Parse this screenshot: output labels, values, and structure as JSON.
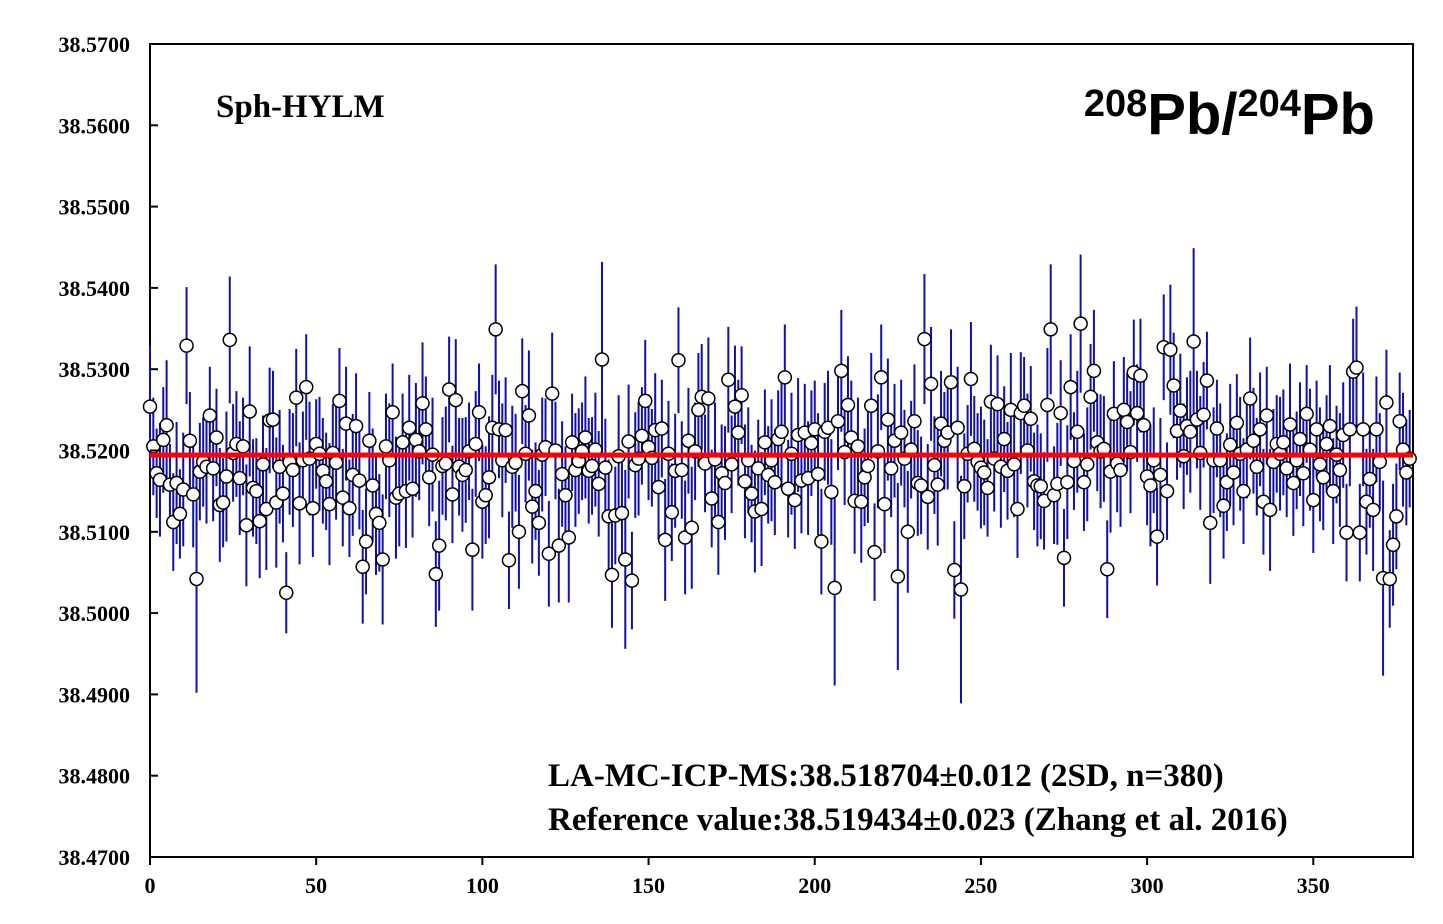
{
  "chart_data": {
    "type": "scatter",
    "title": [
      "208",
      "Pb/",
      "204",
      "Pb"
    ],
    "sample_label": "Sph-HYLM",
    "annotations": [
      "LA-MC-ICP-MS:38.518704±0.012 (2SD, n=380)",
      "Reference value:38.519434±0.023 (Zhang et al. 2016)"
    ],
    "xlim": [
      0,
      380
    ],
    "ylim": [
      38.47,
      38.57
    ],
    "xticks": [
      0,
      50,
      100,
      150,
      200,
      250,
      300,
      350
    ],
    "yticks": [
      {
        "value": 38.47,
        "label": "38.4700"
      },
      {
        "value": 38.48,
        "label": "38.4800"
      },
      {
        "value": 38.49,
        "label": "38.4900"
      },
      {
        "value": 38.5,
        "label": "38.5000"
      },
      {
        "value": 38.51,
        "label": "38.5100"
      },
      {
        "value": 38.52,
        "label": "38.5200"
      },
      {
        "value": 38.53,
        "label": "38.5300"
      },
      {
        "value": 38.54,
        "label": "38.5400"
      },
      {
        "value": 38.55,
        "label": "38.5500"
      },
      {
        "value": 38.56,
        "label": "38.5600"
      },
      {
        "value": 38.57,
        "label": "38.5700"
      }
    ],
    "reference_line": 38.519434,
    "reference_color": "#ff0000",
    "color": "#1010b0",
    "marker_fill": "#ffffff",
    "marker_edge": "#000000",
    "x": [
      0,
      1,
      2,
      3,
      4,
      5,
      6,
      7,
      8,
      9,
      10,
      11,
      12,
      13,
      14,
      15,
      16,
      17,
      18,
      19,
      20,
      21,
      22,
      23,
      24,
      25,
      26,
      27,
      28,
      29,
      30,
      31,
      32,
      33,
      34,
      35,
      36,
      37,
      38,
      39,
      40,
      41,
      42,
      43,
      44,
      45,
      46,
      47,
      48,
      49,
      50,
      51,
      52,
      53,
      54,
      55,
      56,
      57,
      58,
      59,
      60,
      61,
      62,
      63,
      64,
      65,
      66,
      67,
      68,
      69,
      70,
      71,
      72,
      73,
      74,
      75,
      76,
      77,
      78,
      79,
      80,
      81,
      82,
      83,
      84,
      85,
      86,
      87,
      88,
      89,
      90,
      91,
      92,
      93,
      94,
      95,
      96,
      97,
      98,
      99,
      100,
      101,
      102,
      103,
      104,
      105,
      106,
      107,
      108,
      109,
      110,
      111,
      112,
      113,
      114,
      115,
      116,
      117,
      118,
      119,
      120,
      121,
      122,
      123,
      124,
      125,
      126,
      127,
      128,
      129,
      130,
      131,
      132,
      133,
      134,
      135,
      136,
      137,
      138,
      139,
      140,
      141,
      142,
      143,
      144,
      145,
      146,
      147,
      148,
      149,
      150,
      151,
      152,
      153,
      154,
      155,
      156,
      157,
      158,
      159,
      160,
      161,
      162,
      163,
      164,
      165,
      166,
      167,
      168,
      169,
      170,
      171,
      172,
      173,
      174,
      175,
      176,
      177,
      178,
      179,
      180,
      181,
      182,
      183,
      184,
      185,
      186,
      187,
      188,
      189,
      190,
      191,
      192,
      193,
      194,
      195,
      196,
      197,
      198,
      199,
      200,
      201,
      202,
      203,
      204,
      205,
      206,
      207,
      208,
      209,
      210,
      211,
      212,
      213,
      214,
      215,
      216,
      217,
      218,
      219,
      220,
      221,
      222,
      223,
      224,
      225,
      226,
      227,
      228,
      229,
      230,
      231,
      232,
      233,
      234,
      235,
      236,
      237,
      238,
      239,
      240,
      241,
      242,
      243,
      244,
      245,
      246,
      247,
      248,
      249,
      250,
      251,
      252,
      253,
      254,
      255,
      256,
      257,
      258,
      259,
      260,
      261,
      262,
      263,
      264,
      265,
      266,
      267,
      268,
      269,
      270,
      271,
      272,
      273,
      274,
      275,
      276,
      277,
      278,
      279,
      280,
      281,
      282,
      283,
      284,
      285,
      286,
      287,
      288,
      289,
      290,
      291,
      292,
      293,
      294,
      295,
      296,
      297,
      298,
      299,
      300,
      301,
      302,
      303,
      304,
      305,
      306,
      307,
      308,
      309,
      310,
      311,
      312,
      313,
      314,
      315,
      316,
      317,
      318,
      319,
      320,
      321,
      322,
      323,
      324,
      325,
      326,
      327,
      328,
      329,
      330,
      331,
      332,
      333,
      334,
      335,
      336,
      337,
      338,
      339,
      340,
      341,
      342,
      343,
      344,
      345,
      346,
      347,
      348,
      349,
      350,
      351,
      352,
      353,
      354,
      355,
      356,
      357,
      358,
      359,
      360,
      361,
      362,
      363,
      364,
      365,
      366,
      367,
      368,
      369,
      370,
      371,
      372,
      373,
      374,
      375,
      376,
      377,
      378,
      379
    ],
    "values": [
      38.5254,
      38.5205,
      38.5172,
      38.5164,
      38.5213,
      38.5231,
      38.5158,
      38.5112,
      38.516,
      38.5122,
      38.5152,
      38.5329,
      38.5212,
      38.5146,
      38.5042,
      38.5174,
      38.5186,
      38.518,
      38.5243,
      38.5178,
      38.5216,
      38.5133,
      38.5136,
      38.5168,
      38.5336,
      38.5197,
      38.5208,
      38.5166,
      38.5205,
      38.5108,
      38.5248,
      38.5154,
      38.515,
      38.5113,
      38.5183,
      38.5128,
      38.5237,
      38.5238,
      38.5136,
      38.518,
      38.5147,
      38.5025,
      38.5186,
      38.5176,
      38.5265,
      38.5135,
      38.5188,
      38.5278,
      38.519,
      38.5129,
      38.5208,
      38.5196,
      38.5175,
      38.5162,
      38.5134,
      38.5197,
      38.5185,
      38.5261,
      38.5142,
      38.5233,
      38.5129,
      38.517,
      38.523,
      38.5163,
      38.5057,
      38.5088,
      38.5212,
      38.5157,
      38.5122,
      38.5111,
      38.5066,
      38.5205,
      38.5188,
      38.5247,
      38.5142,
      38.5147,
      38.521,
      38.515,
      38.5228,
      38.5153,
      38.5213,
      38.5199,
      38.5258,
      38.5226,
      38.5167,
      38.5195,
      38.5048,
      38.5083,
      38.5181,
      38.5184,
      38.5275,
      38.5146,
      38.5262,
      38.518,
      38.517,
      38.5176,
      38.5199,
      38.5078,
      38.5208,
      38.5247,
      38.5137,
      38.5145,
      38.5167,
      38.5228,
      38.5349,
      38.5226,
      38.5188,
      38.5225,
      38.5065,
      38.518,
      38.5185,
      38.51,
      38.5273,
      38.5196,
      38.5243,
      38.5131,
      38.515,
      38.5111,
      38.5195,
      38.5204,
      38.5073,
      38.527,
      38.52,
      38.5083,
      38.5171,
      38.5145,
      38.5093,
      38.521,
      38.5176,
      38.5187,
      38.5199,
      38.5216,
      38.5175,
      38.5181,
      38.5201,
      38.5159,
      38.5312,
      38.5179,
      38.5119,
      38.5047,
      38.512,
      38.5193,
      38.5123,
      38.5066,
      38.5211,
      38.504,
      38.5182,
      38.519,
      38.5218,
      38.5261,
      38.5204,
      38.5191,
      38.5225,
      38.5155,
      38.5227,
      38.509,
      38.5196,
      38.5124,
      38.5175,
      38.5311,
      38.5176,
      38.5093,
      38.5212,
      38.5105,
      38.5199,
      38.525,
      38.5266,
      38.5184,
      38.5264,
      38.5141,
      38.5189,
      38.5112,
      38.5172,
      38.516,
      38.5287,
      38.5183,
      38.5254,
      38.5222,
      38.5268,
      38.5162,
      38.5188,
      38.5147,
      38.5125,
      38.5178,
      38.5128,
      38.521,
      38.517,
      38.5188,
      38.5161,
      38.5214,
      38.5223,
      38.529,
      38.5153,
      38.5196,
      38.5139,
      38.5219,
      38.5163,
      38.5222,
      38.5166,
      38.5209,
      38.5226,
      38.5171,
      38.5088,
      38.5223,
      38.5228,
      38.5149,
      38.5031,
      38.5236,
      38.5298,
      38.5198,
      38.5256,
      38.5216,
      38.5138,
      38.5205,
      38.5137,
      38.5167,
      38.5181,
      38.5255,
      38.5075,
      38.5199,
      38.529,
      38.5134,
      38.5238,
      38.5178,
      38.5212,
      38.5045,
      38.5222,
      38.519,
      38.51,
      38.5201,
      38.5236,
      38.516,
      38.5157,
      38.5337,
      38.5143,
      38.5282,
      38.5182,
      38.5158,
      38.5233,
      38.5212,
      38.5222,
      38.5284,
      38.5053,
      38.5228,
      38.5029,
      38.5156,
      38.5196,
      38.5288,
      38.5202,
      38.5186,
      38.5179,
      38.5173,
      38.5154,
      38.526,
      38.519,
      38.5257,
      38.518,
      38.5214,
      38.5175,
      38.525,
      38.5183,
      38.5128,
      38.5246,
      38.5255,
      38.52,
      38.5239,
      38.5162,
      38.5157,
      38.5156,
      38.5138,
      38.5256,
      38.5349,
      38.5145,
      38.5159,
      38.5246,
      38.5068,
      38.5161,
      38.5278,
      38.5187,
      38.5223,
      38.5356,
      38.5161,
      38.5183,
      38.5266,
      38.5298,
      38.521,
      38.5199,
      38.5202,
      38.5054,
      38.5174,
      38.5245,
      38.5184,
      38.5176,
      38.525,
      38.5235,
      38.5198,
      38.5296,
      38.5246,
      38.5292,
      38.5231,
      38.5168,
      38.5157,
      38.5188,
      38.5094,
      38.517,
      38.5327,
      38.515,
      38.5324,
      38.528,
      38.5224,
      38.5249,
      38.5193,
      38.523,
      38.5223,
      38.5334,
      38.5238,
      38.5197,
      38.5244,
      38.5286,
      38.5111,
      38.5188,
      38.5227,
      38.5188,
      38.5132,
      38.5161,
      38.5207,
      38.5173,
      38.5234,
      38.5196,
      38.515,
      38.5201,
      38.5264,
      38.5212,
      38.518,
      38.5226,
      38.5137,
      38.5243,
      38.5127,
      38.5186,
      38.5208,
      38.5196,
      38.521,
      38.5178,
      38.5232,
      38.516,
      38.5188,
      38.5214,
      38.5172,
      38.5245,
      38.5201,
      38.5139,
      38.5226,
      38.5183,
      38.5167,
      38.5208,
      38.523,
      38.515,
      38.5195,
      38.5176,
      38.5219,
      38.5099,
      38.5226,
      38.5297,
      38.5302,
      38.5099,
      38.5226,
      38.5137,
      38.5165,
      38.5127,
      38.5226,
      38.5186,
      38.5043,
      38.5259,
      38.5042,
      38.5084,
      38.5119,
      38.5236,
      38.5201,
      38.5173,
      38.519
    ],
    "errors": [
      0.0075,
      0.006,
      0.0055,
      0.007,
      0.0065,
      0.008,
      0.005,
      0.006,
      0.0075,
      0.0055,
      0.007,
      0.0072,
      0.006,
      0.0065,
      0.014,
      0.006,
      0.0055,
      0.007,
      0.006,
      0.0065,
      0.006,
      0.007,
      0.0055,
      0.008,
      0.0078,
      0.006,
      0.0065,
      0.007,
      0.006,
      0.0075,
      0.008,
      0.006,
      0.0065,
      0.007,
      0.006,
      0.0075,
      0.0065,
      0.006,
      0.008,
      0.007,
      0.006,
      0.005,
      0.0065,
      0.007,
      0.006,
      0.0075,
      0.006,
      0.0065,
      0.007,
      0.006,
      0.0055,
      0.007,
      0.0065,
      0.006,
      0.0075,
      0.006,
      0.007,
      0.0065,
      0.006,
      0.007,
      0.006,
      0.0075,
      0.0065,
      0.006,
      0.007,
      0.0065,
      0.006,
      0.007,
      0.0075,
      0.006,
      0.008,
      0.0065,
      0.007,
      0.006,
      0.0075,
      0.0065,
      0.006,
      0.007,
      0.0065,
      0.006,
      0.007,
      0.006,
      0.0075,
      0.0065,
      0.006,
      0.007,
      0.0065,
      0.008,
      0.006,
      0.007,
      0.0065,
      0.006,
      0.0075,
      0.006,
      0.007,
      0.0065,
      0.006,
      0.0075,
      0.0065,
      0.006,
      0.007,
      0.006,
      0.0075,
      0.0065,
      0.008,
      0.006,
      0.007,
      0.0065,
      0.006,
      0.0075,
      0.006,
      0.007,
      0.0065,
      0.006,
      0.008,
      0.007,
      0.006,
      0.0065,
      0.007,
      0.006,
      0.0065,
      0.0075,
      0.006,
      0.007,
      0.0065,
      0.006,
      0.008,
      0.006,
      0.007,
      0.0065,
      0.006,
      0.0075,
      0.0065,
      0.006,
      0.007,
      0.0065,
      0.012,
      0.006,
      0.007,
      0.0065,
      0.006,
      0.0075,
      0.0065,
      0.011,
      0.007,
      0.006,
      0.0065,
      0.007,
      0.006,
      0.0075,
      0.0065,
      0.006,
      0.007,
      0.0065,
      0.006,
      0.0075,
      0.0065,
      0.006,
      0.007,
      0.0065,
      0.006,
      0.007,
      0.0065,
      0.0075,
      0.006,
      0.007,
      0.0065,
      0.006,
      0.0075,
      0.006,
      0.007,
      0.0065,
      0.006,
      0.007,
      0.0065,
      0.006,
      0.0075,
      0.0065,
      0.006,
      0.007,
      0.0065,
      0.006,
      0.0075,
      0.006,
      0.007,
      0.0065,
      0.006,
      0.0075,
      0.0065,
      0.006,
      0.007,
      0.0065,
      0.006,
      0.0075,
      0.006,
      0.007,
      0.0065,
      0.006,
      0.007,
      0.0065,
      0.006,
      0.0075,
      0.0065,
      0.006,
      0.007,
      0.0065,
      0.012,
      0.006,
      0.0075,
      0.0065,
      0.006,
      0.007,
      0.0065,
      0.006,
      0.0075,
      0.006,
      0.007,
      0.0065,
      0.006,
      0.007,
      0.0065,
      0.006,
      0.0075,
      0.006,
      0.007,
      0.0115,
      0.0065,
      0.006,
      0.0075,
      0.006,
      0.007,
      0.0065,
      0.006,
      0.008,
      0.0065,
      0.007,
      0.006,
      0.0075,
      0.0065,
      0.006,
      0.007,
      0.0065,
      0.006,
      0.0075,
      0.014,
      0.0065,
      0.006,
      0.007,
      0.0065,
      0.006,
      0.0075,
      0.0065,
      0.006,
      0.007,
      0.0065,
      0.006,
      0.0075,
      0.0065,
      0.006,
      0.007,
      0.0065,
      0.006,
      0.0075,
      0.006,
      0.007,
      0.0065,
      0.006,
      0.0075,
      0.0065,
      0.006,
      0.007,
      0.008,
      0.006,
      0.0075,
      0.0065,
      0.006,
      0.007,
      0.0065,
      0.006,
      0.0075,
      0.0085,
      0.006,
      0.007,
      0.0065,
      0.0075,
      0.006,
      0.007,
      0.0065,
      0.006,
      0.0075,
      0.0065,
      0.006,
      0.007,
      0.0065,
      0.006,
      0.0075,
      0.0065,
      0.006,
      0.007,
      0.0065,
      0.006,
      0.0075,
      0.0065,
      0.006,
      0.007,
      0.0065,
      0.006,
      0.008,
      0.0065,
      0.006,
      0.007,
      0.0065,
      0.006,
      0.0075,
      0.0115,
      0.006,
      0.007,
      0.0065,
      0.006,
      0.0075,
      0.0065,
      0.006,
      0.007,
      0.0065,
      0.006,
      0.0075,
      0.0065,
      0.006,
      0.007,
      0.0065,
      0.006,
      0.0075,
      0.0065,
      0.006,
      0.007,
      0.0065,
      0.006,
      0.0075,
      0.0065,
      0.006,
      0.007,
      0.0065,
      0.006,
      0.0075,
      0.0065,
      0.006,
      0.007,
      0.0065,
      0.006,
      0.0075,
      0.0065,
      0.006,
      0.007,
      0.0065,
      0.006,
      0.0075,
      0.0065,
      0.006,
      0.007,
      0.0065,
      0.006,
      0.007,
      0.0065,
      0.0075,
      0.006,
      0.007,
      0.0065,
      0.006,
      0.0075,
      0.0065,
      0.006,
      0.012,
      0.0065,
      0.006,
      0.0075,
      0.0065,
      0.006,
      0.007,
      0.0065,
      0.006
    ]
  }
}
